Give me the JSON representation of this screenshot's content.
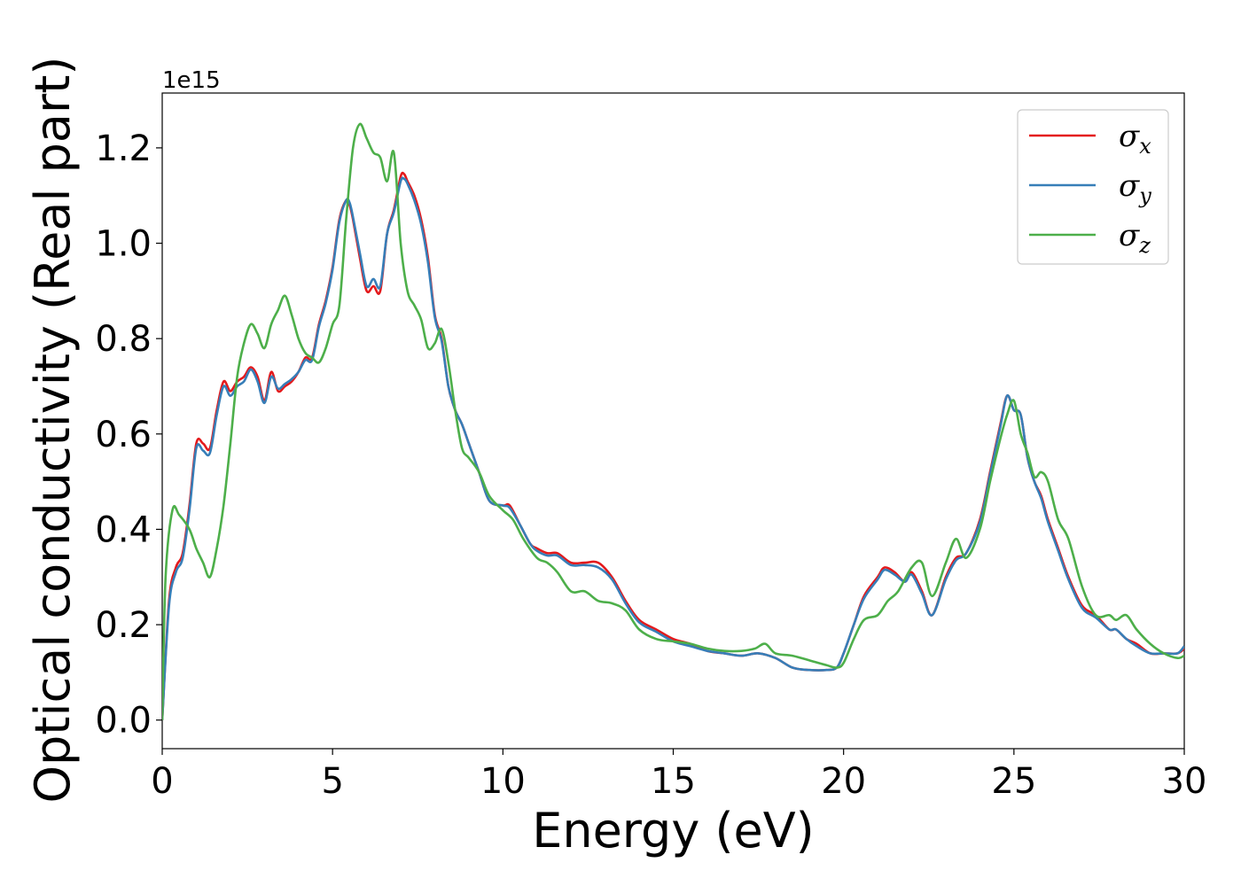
{
  "chart_data": {
    "type": "line",
    "title": "",
    "xlabel": "Energy (eV)",
    "ylabel": "Optical conductivity (Real part)",
    "y_offset_label": "1e15",
    "xlim": [
      0,
      30
    ],
    "ylim": [
      -0.06,
      1.315
    ],
    "xticks": [
      0,
      5,
      10,
      15,
      20,
      25,
      30
    ],
    "xtick_labels": [
      "0",
      "5",
      "10",
      "15",
      "20",
      "25",
      "30"
    ],
    "yticks": [
      0.0,
      0.2,
      0.4,
      0.6,
      0.8,
      1.0,
      1.2
    ],
    "ytick_labels": [
      "0.0",
      "0.2",
      "0.4",
      "0.6",
      "0.8",
      "1.0",
      "1.2"
    ],
    "grid": false,
    "legend_position": "top-right",
    "series": [
      {
        "name": "σx",
        "legend_symbol": "σ",
        "legend_sub": "x",
        "color": "#e41a1c",
        "x": [
          0,
          0.2,
          0.4,
          0.6,
          0.8,
          1.0,
          1.2,
          1.4,
          1.6,
          1.8,
          2.0,
          2.2,
          2.4,
          2.6,
          2.8,
          3.0,
          3.2,
          3.4,
          3.6,
          3.8,
          4.0,
          4.2,
          4.4,
          4.6,
          4.8,
          5.0,
          5.2,
          5.4,
          5.5,
          5.6,
          5.8,
          6.0,
          6.2,
          6.4,
          6.6,
          6.8,
          7.0,
          7.1,
          7.2,
          7.4,
          7.6,
          7.8,
          8.0,
          8.2,
          8.4,
          8.6,
          8.8,
          9.0,
          9.3,
          9.6,
          10.0,
          10.2,
          10.5,
          10.8,
          11.0,
          11.3,
          11.6,
          12.0,
          12.4,
          12.8,
          13.2,
          13.6,
          14.0,
          14.5,
          15.0,
          15.5,
          16.0,
          16.5,
          17.0,
          17.5,
          18.0,
          18.5,
          19.0,
          19.5,
          19.8,
          20.0,
          20.3,
          20.6,
          21.0,
          21.2,
          21.5,
          21.8,
          22.0,
          22.3,
          22.6,
          23.0,
          23.3,
          23.6,
          24.0,
          24.3,
          24.6,
          24.8,
          25.0,
          25.2,
          25.4,
          25.6,
          25.8,
          26.0,
          26.3,
          26.6,
          27.0,
          27.4,
          27.8,
          28.0,
          28.3,
          28.6,
          29.0,
          29.4,
          29.8,
          30.0
        ],
        "y": [
          0.0,
          0.25,
          0.32,
          0.35,
          0.45,
          0.58,
          0.58,
          0.57,
          0.65,
          0.71,
          0.69,
          0.71,
          0.72,
          0.74,
          0.72,
          0.67,
          0.73,
          0.69,
          0.7,
          0.71,
          0.73,
          0.76,
          0.76,
          0.83,
          0.88,
          0.95,
          1.05,
          1.09,
          1.08,
          1.05,
          0.97,
          0.9,
          0.91,
          0.9,
          1.02,
          1.07,
          1.14,
          1.145,
          1.13,
          1.1,
          1.05,
          0.97,
          0.85,
          0.8,
          0.7,
          0.65,
          0.62,
          0.58,
          0.52,
          0.46,
          0.45,
          0.45,
          0.41,
          0.37,
          0.36,
          0.35,
          0.35,
          0.33,
          0.33,
          0.33,
          0.3,
          0.25,
          0.21,
          0.19,
          0.17,
          0.16,
          0.145,
          0.14,
          0.135,
          0.14,
          0.13,
          0.11,
          0.105,
          0.105,
          0.11,
          0.14,
          0.2,
          0.26,
          0.3,
          0.32,
          0.31,
          0.29,
          0.31,
          0.27,
          0.22,
          0.3,
          0.34,
          0.35,
          0.42,
          0.52,
          0.62,
          0.68,
          0.65,
          0.64,
          0.55,
          0.5,
          0.47,
          0.42,
          0.36,
          0.3,
          0.24,
          0.22,
          0.19,
          0.19,
          0.17,
          0.16,
          0.14,
          0.14,
          0.14,
          0.15
        ]
      },
      {
        "name": "σy",
        "legend_symbol": "σ",
        "legend_sub": "y",
        "color": "#377eb8",
        "x": [
          0,
          0.2,
          0.4,
          0.6,
          0.8,
          1.0,
          1.2,
          1.4,
          1.6,
          1.8,
          2.0,
          2.2,
          2.4,
          2.6,
          2.8,
          3.0,
          3.2,
          3.4,
          3.6,
          3.8,
          4.0,
          4.2,
          4.4,
          4.6,
          4.8,
          5.0,
          5.2,
          5.4,
          5.5,
          5.6,
          5.8,
          6.0,
          6.2,
          6.4,
          6.6,
          6.8,
          7.0,
          7.1,
          7.2,
          7.4,
          7.6,
          7.8,
          8.0,
          8.2,
          8.4,
          8.6,
          8.8,
          9.0,
          9.3,
          9.6,
          10.0,
          10.2,
          10.5,
          10.8,
          11.0,
          11.3,
          11.6,
          12.0,
          12.4,
          12.8,
          13.2,
          13.6,
          14.0,
          14.5,
          15.0,
          15.5,
          16.0,
          16.5,
          17.0,
          17.5,
          18.0,
          18.5,
          19.0,
          19.5,
          19.8,
          20.0,
          20.3,
          20.6,
          21.0,
          21.2,
          21.5,
          21.8,
          22.0,
          22.3,
          22.6,
          23.0,
          23.3,
          23.6,
          24.0,
          24.3,
          24.6,
          24.8,
          25.0,
          25.2,
          25.4,
          25.6,
          25.8,
          26.0,
          26.3,
          26.6,
          27.0,
          27.4,
          27.8,
          28.0,
          28.3,
          28.6,
          29.0,
          29.4,
          29.8,
          30.0
        ],
        "y": [
          0.0,
          0.24,
          0.31,
          0.34,
          0.44,
          0.57,
          0.565,
          0.56,
          0.64,
          0.7,
          0.68,
          0.7,
          0.71,
          0.735,
          0.71,
          0.665,
          0.72,
          0.695,
          0.705,
          0.715,
          0.73,
          0.755,
          0.755,
          0.825,
          0.875,
          0.945,
          1.045,
          1.09,
          1.085,
          1.055,
          0.98,
          0.91,
          0.925,
          0.91,
          1.02,
          1.065,
          1.13,
          1.135,
          1.125,
          1.09,
          1.04,
          0.96,
          0.845,
          0.795,
          0.7,
          0.65,
          0.62,
          0.58,
          0.52,
          0.46,
          0.45,
          0.445,
          0.41,
          0.37,
          0.355,
          0.345,
          0.345,
          0.325,
          0.325,
          0.32,
          0.295,
          0.245,
          0.205,
          0.185,
          0.165,
          0.155,
          0.145,
          0.14,
          0.135,
          0.14,
          0.13,
          0.11,
          0.105,
          0.105,
          0.11,
          0.14,
          0.2,
          0.255,
          0.295,
          0.315,
          0.305,
          0.29,
          0.305,
          0.265,
          0.22,
          0.295,
          0.335,
          0.35,
          0.415,
          0.515,
          0.615,
          0.68,
          0.65,
          0.64,
          0.55,
          0.5,
          0.465,
          0.415,
          0.355,
          0.295,
          0.235,
          0.215,
          0.19,
          0.19,
          0.17,
          0.155,
          0.14,
          0.14,
          0.14,
          0.155
        ]
      },
      {
        "name": "σz",
        "legend_symbol": "σ",
        "legend_sub": "z",
        "color": "#4daf4a",
        "x": [
          0,
          0.1,
          0.3,
          0.5,
          0.8,
          1.0,
          1.2,
          1.4,
          1.6,
          1.8,
          2.0,
          2.2,
          2.4,
          2.6,
          2.8,
          3.0,
          3.2,
          3.4,
          3.6,
          3.8,
          4.0,
          4.2,
          4.4,
          4.6,
          4.8,
          5.0,
          5.2,
          5.4,
          5.6,
          5.8,
          6.0,
          6.2,
          6.4,
          6.6,
          6.8,
          7.0,
          7.2,
          7.4,
          7.6,
          7.8,
          8.0,
          8.2,
          8.4,
          8.6,
          8.8,
          9.0,
          9.3,
          9.6,
          10.0,
          10.3,
          10.6,
          11.0,
          11.3,
          11.6,
          12.0,
          12.4,
          12.8,
          13.2,
          13.6,
          14.0,
          14.5,
          15.0,
          15.5,
          16.0,
          16.5,
          17.0,
          17.4,
          17.7,
          18.0,
          18.5,
          19.0,
          19.5,
          19.8,
          20.0,
          20.3,
          20.6,
          21.0,
          21.3,
          21.6,
          22.0,
          22.3,
          22.6,
          23.0,
          23.3,
          23.6,
          24.0,
          24.3,
          24.6,
          24.8,
          25.0,
          25.2,
          25.4,
          25.6,
          25.8,
          26.0,
          26.3,
          26.6,
          27.0,
          27.4,
          27.8,
          28.0,
          28.3,
          28.6,
          29.0,
          29.4,
          29.8,
          30.0
        ],
        "y": [
          0.0,
          0.3,
          0.44,
          0.43,
          0.4,
          0.36,
          0.33,
          0.3,
          0.36,
          0.45,
          0.58,
          0.72,
          0.79,
          0.83,
          0.81,
          0.78,
          0.83,
          0.86,
          0.89,
          0.85,
          0.8,
          0.77,
          0.76,
          0.75,
          0.78,
          0.83,
          0.87,
          1.05,
          1.2,
          1.25,
          1.22,
          1.19,
          1.18,
          1.13,
          1.19,
          1.0,
          0.9,
          0.87,
          0.84,
          0.78,
          0.79,
          0.82,
          0.75,
          0.65,
          0.57,
          0.55,
          0.52,
          0.47,
          0.44,
          0.42,
          0.38,
          0.34,
          0.33,
          0.31,
          0.27,
          0.27,
          0.25,
          0.245,
          0.23,
          0.19,
          0.17,
          0.165,
          0.16,
          0.15,
          0.145,
          0.145,
          0.15,
          0.16,
          0.14,
          0.135,
          0.125,
          0.115,
          0.11,
          0.12,
          0.17,
          0.21,
          0.22,
          0.25,
          0.27,
          0.32,
          0.33,
          0.26,
          0.33,
          0.38,
          0.34,
          0.4,
          0.5,
          0.59,
          0.64,
          0.67,
          0.6,
          0.56,
          0.51,
          0.52,
          0.5,
          0.42,
          0.38,
          0.28,
          0.22,
          0.22,
          0.21,
          0.22,
          0.19,
          0.16,
          0.14,
          0.13,
          0.135
        ]
      }
    ]
  }
}
